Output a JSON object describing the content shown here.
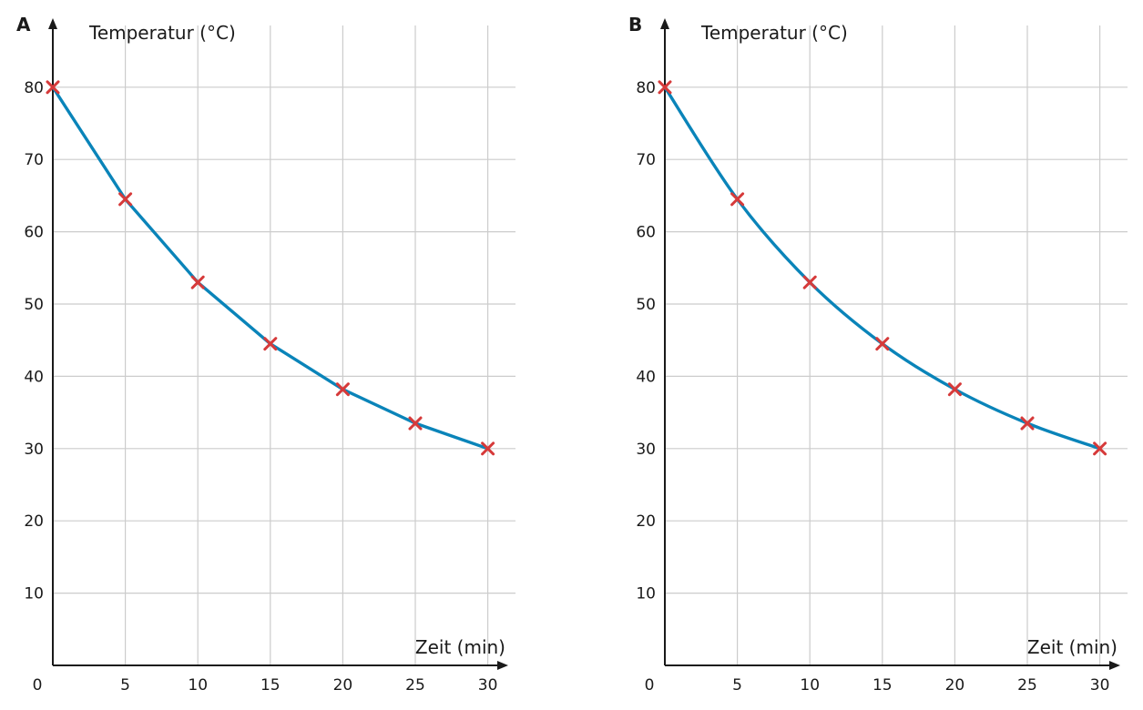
{
  "colors": {
    "curve": "#0a84b9",
    "marker": "#d63a3a"
  },
  "chart_data": [
    {
      "type": "line",
      "panel_label": "A",
      "interpolation": "linear",
      "ylabel": "Temperatur (°C)",
      "xlabel": "Zeit (min)",
      "origin_label": "0",
      "xlim": [
        0,
        32
      ],
      "ylim": [
        0,
        88
      ],
      "x_ticks": [
        5,
        10,
        15,
        20,
        25,
        30
      ],
      "y_ticks": [
        10,
        20,
        30,
        40,
        50,
        60,
        70,
        80
      ],
      "grid": true,
      "x": [
        0,
        5,
        10,
        15,
        20,
        25,
        30
      ],
      "y": [
        80,
        64.5,
        53,
        44.5,
        38.2,
        33.5,
        30
      ]
    },
    {
      "type": "line",
      "panel_label": "B",
      "interpolation": "smooth",
      "ylabel": "Temperatur (°C)",
      "xlabel": "Zeit (min)",
      "origin_label": "0",
      "xlim": [
        0,
        32
      ],
      "ylim": [
        0,
        88
      ],
      "x_ticks": [
        5,
        10,
        15,
        20,
        25,
        30
      ],
      "y_ticks": [
        10,
        20,
        30,
        40,
        50,
        60,
        70,
        80
      ],
      "grid": true,
      "x": [
        0,
        5,
        10,
        15,
        20,
        25,
        30
      ],
      "y": [
        80,
        64.5,
        53,
        44.5,
        38.2,
        33.5,
        30
      ]
    }
  ]
}
